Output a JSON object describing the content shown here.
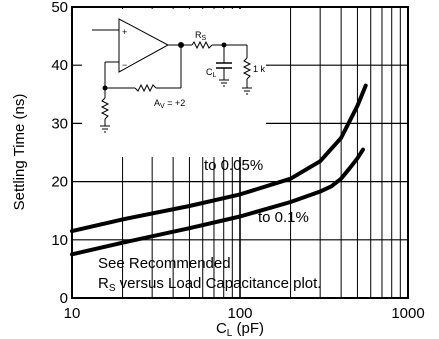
{
  "chart_data": {
    "type": "line",
    "xlabel": "C",
    "xlabel_sub": "L",
    "xlabel_unit": " (pF)",
    "ylabel": "Settling Time (ns)",
    "xscale": "log",
    "xlim": [
      10,
      1000
    ],
    "ylim": [
      0,
      50
    ],
    "grid": true,
    "x_ticks": [
      "10",
      "100",
      "1000"
    ],
    "y_ticks": [
      "0",
      "10",
      "20",
      "30",
      "40",
      "50"
    ],
    "series": [
      {
        "name": "to 0.05%",
        "x": [
          10,
          20,
          50,
          100,
          200,
          300,
          400,
          500,
          560
        ],
        "y": [
          11.5,
          13.5,
          15.8,
          17.8,
          20.5,
          23.5,
          27.5,
          33,
          36.5
        ]
      },
      {
        "name": "to 0.1%",
        "x": [
          10,
          20,
          50,
          100,
          200,
          300,
          350,
          400,
          450,
          500,
          540
        ],
        "y": [
          7.5,
          9.5,
          12,
          14,
          16.5,
          18.3,
          19.2,
          20.5,
          22.3,
          24,
          25.5
        ]
      }
    ],
    "annotations": {
      "series_label_1": "to 0.05%",
      "series_label_2": "to 0.1%",
      "note_line1": "See Recommended",
      "note_line2": "R",
      "note_line2_sub": "S",
      "note_line2_rest": " versus Load Capacitance plot."
    },
    "inset": {
      "rs_label": "R",
      "rs_sub": "S",
      "cl_label": "C",
      "cl_sub": "L",
      "load_label": "1 k",
      "gain_label": "A",
      "gain_sub": "V",
      "gain_value": " = +2",
      "plus_sign": "+",
      "minus_sign": "−"
    }
  }
}
